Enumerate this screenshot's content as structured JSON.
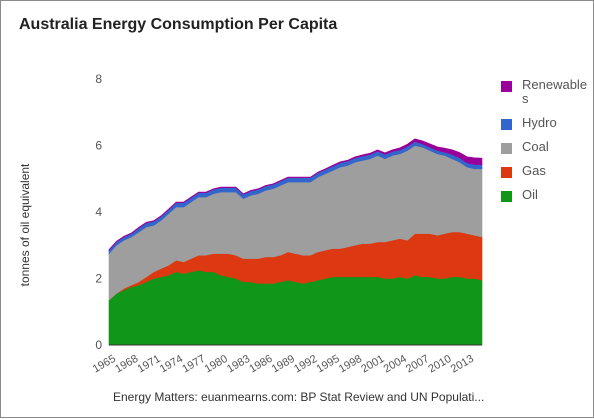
{
  "chart_data": {
    "type": "area",
    "stacked": true,
    "title": "Australia Energy Consumption Per Capita",
    "ylabel": "tonnes of oil equivalent",
    "xlabel": "",
    "caption": "Energy Matters: euanmearns.com: BP Stat Review and UN Populati...",
    "ylim": [
      0,
      8
    ],
    "yticks": [
      "0",
      "2",
      "4",
      "6",
      "8"
    ],
    "xlim": [
      1965,
      2015
    ],
    "xticks": [
      "1965",
      "1968",
      "1971",
      "1974",
      "1977",
      "1980",
      "1983",
      "1986",
      "1989",
      "1992",
      "1995",
      "1998",
      "2001",
      "2004",
      "2007",
      "2010",
      "2013"
    ],
    "x": [
      1965,
      1966,
      1967,
      1968,
      1969,
      1970,
      1971,
      1972,
      1973,
      1974,
      1975,
      1976,
      1977,
      1978,
      1979,
      1980,
      1981,
      1982,
      1983,
      1984,
      1985,
      1986,
      1987,
      1988,
      1989,
      1990,
      1991,
      1992,
      1993,
      1994,
      1995,
      1996,
      1997,
      1998,
      1999,
      2000,
      2001,
      2002,
      2003,
      2004,
      2005,
      2006,
      2007,
      2008,
      2009,
      2010,
      2011,
      2012,
      2013,
      2014,
      2015
    ],
    "series": [
      {
        "name": "Oil",
        "color": "#109618",
        "values": [
          1.35,
          1.55,
          1.65,
          1.75,
          1.8,
          1.9,
          2.0,
          2.05,
          2.1,
          2.2,
          2.15,
          2.2,
          2.25,
          2.2,
          2.2,
          2.1,
          2.05,
          2.0,
          1.9,
          1.9,
          1.85,
          1.85,
          1.85,
          1.9,
          1.95,
          1.9,
          1.85,
          1.9,
          1.95,
          2.0,
          2.05,
          2.05,
          2.05,
          2.05,
          2.05,
          2.05,
          2.05,
          2.0,
          2.0,
          2.05,
          2.0,
          2.1,
          2.05,
          2.05,
          2.0,
          2.0,
          2.05,
          2.05,
          2.0,
          2.0,
          1.95
        ]
      },
      {
        "name": "Gas",
        "color": "#dc3912",
        "values": [
          0.0,
          0.0,
          0.05,
          0.05,
          0.1,
          0.15,
          0.2,
          0.25,
          0.3,
          0.35,
          0.35,
          0.4,
          0.45,
          0.5,
          0.55,
          0.65,
          0.7,
          0.7,
          0.7,
          0.7,
          0.75,
          0.8,
          0.8,
          0.8,
          0.85,
          0.85,
          0.85,
          0.8,
          0.85,
          0.85,
          0.85,
          0.85,
          0.9,
          0.95,
          1.0,
          1.0,
          1.05,
          1.1,
          1.15,
          1.15,
          1.15,
          1.25,
          1.3,
          1.3,
          1.3,
          1.35,
          1.35,
          1.35,
          1.35,
          1.3,
          1.3
        ]
      },
      {
        "name": "Coal",
        "color": "#9e9e9e",
        "values": [
          1.4,
          1.45,
          1.45,
          1.45,
          1.5,
          1.5,
          1.4,
          1.45,
          1.55,
          1.6,
          1.65,
          1.7,
          1.75,
          1.75,
          1.8,
          1.85,
          1.85,
          1.9,
          1.8,
          1.9,
          1.95,
          2.0,
          2.05,
          2.1,
          2.1,
          2.15,
          2.2,
          2.2,
          2.25,
          2.3,
          2.35,
          2.45,
          2.45,
          2.5,
          2.5,
          2.55,
          2.6,
          2.5,
          2.55,
          2.55,
          2.7,
          2.65,
          2.6,
          2.5,
          2.45,
          2.35,
          2.2,
          2.1,
          2.0,
          2.0,
          2.05
        ]
      },
      {
        "name": "Hydro",
        "color": "#3366cc",
        "values": [
          0.1,
          0.1,
          0.1,
          0.1,
          0.12,
          0.12,
          0.12,
          0.12,
          0.12,
          0.13,
          0.13,
          0.13,
          0.13,
          0.13,
          0.13,
          0.13,
          0.13,
          0.13,
          0.13,
          0.13,
          0.13,
          0.13,
          0.13,
          0.13,
          0.13,
          0.13,
          0.13,
          0.13,
          0.13,
          0.13,
          0.13,
          0.13,
          0.13,
          0.13,
          0.13,
          0.13,
          0.13,
          0.13,
          0.12,
          0.12,
          0.12,
          0.12,
          0.1,
          0.1,
          0.1,
          0.1,
          0.13,
          0.13,
          0.13,
          0.13,
          0.12
        ]
      },
      {
        "name": "Renewables",
        "color": "#990099",
        "values": [
          0.02,
          0.02,
          0.02,
          0.02,
          0.02,
          0.02,
          0.02,
          0.02,
          0.02,
          0.02,
          0.02,
          0.02,
          0.02,
          0.02,
          0.02,
          0.02,
          0.02,
          0.02,
          0.02,
          0.02,
          0.02,
          0.02,
          0.02,
          0.02,
          0.02,
          0.02,
          0.02,
          0.02,
          0.02,
          0.02,
          0.03,
          0.03,
          0.03,
          0.03,
          0.04,
          0.04,
          0.04,
          0.05,
          0.05,
          0.06,
          0.07,
          0.08,
          0.09,
          0.1,
          0.11,
          0.12,
          0.14,
          0.16,
          0.18,
          0.2,
          0.2
        ]
      }
    ],
    "legend_order": [
      "Renewables",
      "Hydro",
      "Coal",
      "Gas",
      "Oil"
    ],
    "legend_position": "right",
    "grid": false
  }
}
